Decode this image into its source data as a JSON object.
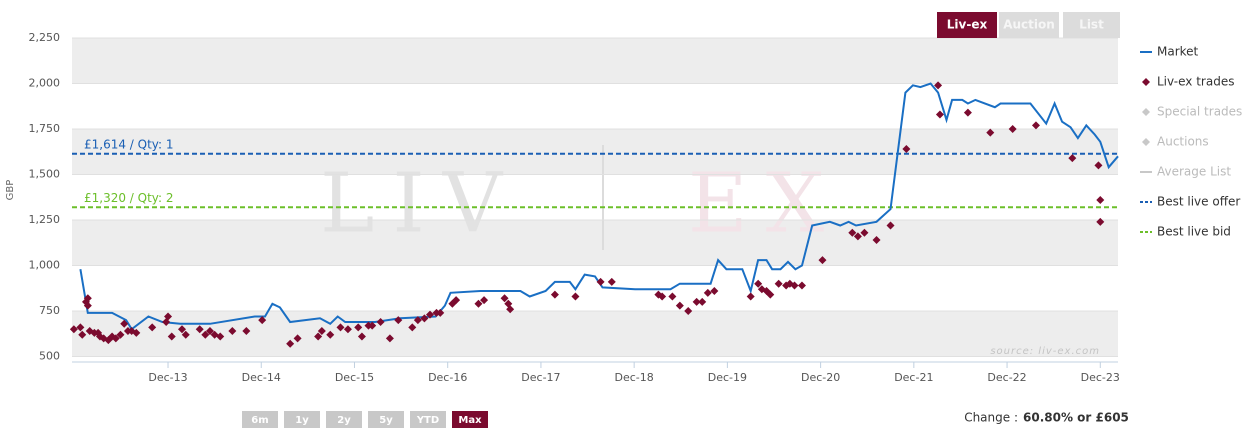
{
  "chart_data": {
    "type": "line",
    "tabs": [
      {
        "label": "Liv-ex",
        "active": true
      },
      {
        "label": "Auction",
        "active": false
      },
      {
        "label": "List",
        "active": false
      }
    ],
    "y_axis_label": "GBP",
    "ylim": [
      470,
      2250
    ],
    "yticks": [
      500,
      750,
      {
        "value": 1000,
        "label": "1,000"
      },
      {
        "value": 1250,
        "label": "1,250"
      },
      {
        "value": 1500,
        "label": "1,500"
      },
      {
        "value": 1750,
        "label": "1,750"
      },
      {
        "value": 2000,
        "label": "2,000"
      },
      {
        "value": 2250,
        "label": "2,250"
      }
    ],
    "xlim": [
      2012.89,
      2024.11
    ],
    "xticks": [
      {
        "value": 2013.92,
        "label": "Dec-13"
      },
      {
        "value": 2014.92,
        "label": "Dec-14"
      },
      {
        "value": 2015.92,
        "label": "Dec-15"
      },
      {
        "value": 2016.92,
        "label": "Dec-16"
      },
      {
        "value": 2017.92,
        "label": "Dec-17"
      },
      {
        "value": 2018.92,
        "label": "Dec-18"
      },
      {
        "value": 2019.92,
        "label": "Dec-19"
      },
      {
        "value": 2020.92,
        "label": "Dec-20"
      },
      {
        "value": 2021.92,
        "label": "Dec-21"
      },
      {
        "value": 2022.92,
        "label": "Dec-22"
      },
      {
        "value": 2023.92,
        "label": "Dec-23"
      }
    ],
    "watermark_left": "LIV",
    "watermark_right": "EX",
    "source": "source: liv-ex.com",
    "series": [
      {
        "name": "Market",
        "type": "line",
        "color": "#1a6fc4",
        "visible": true,
        "x": [
          2012.98,
          2013.06,
          2013.32,
          2013.47,
          2013.53,
          2013.71,
          2013.86,
          2014.05,
          2014.37,
          2014.85,
          2014.96,
          2015.04,
          2015.12,
          2015.23,
          2015.55,
          2015.66,
          2015.74,
          2015.82,
          2016.14,
          2016.41,
          2016.79,
          2016.89,
          2016.95,
          2017.27,
          2017.7,
          2017.8,
          2017.97,
          2018.07,
          2018.23,
          2018.29,
          2018.39,
          2018.5,
          2018.58,
          2018.93,
          2019.31,
          2019.41,
          2019.74,
          2019.82,
          2019.91,
          2020.08,
          2020.17,
          2020.25,
          2020.34,
          2020.4,
          2020.49,
          2020.57,
          2020.65,
          2020.72,
          2020.83,
          2021.02,
          2021.13,
          2021.22,
          2021.3,
          2021.52,
          2021.67,
          2021.83,
          2021.91,
          2021.99,
          2022.1,
          2022.18,
          2022.27,
          2022.33,
          2022.44,
          2022.5,
          2022.58,
          2022.79,
          2022.85,
          2023.17,
          2023.34,
          2023.43,
          2023.51,
          2023.6,
          2023.68,
          2023.77,
          2023.86,
          2023.92,
          2024.01,
          2024.11
        ],
        "values": [
          980,
          740,
          740,
          700,
          650,
          720,
          690,
          680,
          680,
          720,
          720,
          790,
          770,
          690,
          710,
          680,
          720,
          690,
          690,
          710,
          720,
          780,
          850,
          860,
          860,
          830,
          860,
          910,
          910,
          870,
          950,
          940,
          880,
          870,
          870,
          900,
          900,
          1030,
          980,
          980,
          860,
          1030,
          1030,
          980,
          980,
          1020,
          980,
          1000,
          1220,
          1240,
          1220,
          1240,
          1220,
          1240,
          1310,
          1950,
          1990,
          1980,
          2000,
          1950,
          1800,
          1910,
          1910,
          1890,
          1910,
          1870,
          1890,
          1890,
          1780,
          1890,
          1790,
          1760,
          1700,
          1770,
          1720,
          1680,
          1540,
          1600
        ]
      },
      {
        "name": "Liv-ex trades",
        "type": "scatter",
        "color": "#7b0b2f",
        "visible": true,
        "x": [
          2012.91,
          2012.98,
          2013.0,
          2013.04,
          2013.06,
          2013.06,
          2013.08,
          2013.13,
          2013.17,
          2013.19,
          2013.23,
          2013.28,
          2013.32,
          2013.36,
          2013.41,
          2013.45,
          2013.49,
          2013.53,
          2013.58,
          2013.75,
          2013.9,
          2013.92,
          2013.96,
          2014.07,
          2014.11,
          2014.26,
          2014.32,
          2014.37,
          2014.42,
          2014.48,
          2014.61,
          2014.76,
          2014.93,
          2015.23,
          2015.31,
          2015.53,
          2015.57,
          2015.66,
          2015.77,
          2015.85,
          2015.96,
          2016.0,
          2016.07,
          2016.11,
          2016.2,
          2016.3,
          2016.39,
          2016.54,
          2016.6,
          2016.67,
          2016.73,
          2016.8,
          2016.84,
          2016.97,
          2017.01,
          2017.25,
          2017.31,
          2017.53,
          2017.57,
          2017.59,
          2018.07,
          2018.29,
          2018.56,
          2018.68,
          2019.18,
          2019.22,
          2019.33,
          2019.41,
          2019.5,
          2019.59,
          2019.65,
          2019.71,
          2019.78,
          2020.17,
          2020.25,
          2020.29,
          2020.34,
          2020.38,
          2020.47,
          2020.55,
          2020.59,
          2020.64,
          2020.72,
          2020.94,
          2021.26,
          2021.32,
          2021.39,
          2021.52,
          2021.67,
          2021.84,
          2022.18,
          2022.2,
          2022.5,
          2022.74,
          2022.98,
          2023.23,
          2023.62,
          2023.9,
          2023.92,
          2023.92
        ],
        "values": [
          650,
          660,
          620,
          800,
          820,
          780,
          640,
          630,
          630,
          610,
          600,
          590,
          610,
          600,
          620,
          680,
          640,
          640,
          630,
          660,
          690,
          720,
          610,
          650,
          620,
          650,
          620,
          640,
          620,
          610,
          640,
          640,
          700,
          570,
          600,
          610,
          640,
          620,
          660,
          650,
          660,
          610,
          670,
          670,
          690,
          600,
          700,
          660,
          700,
          710,
          730,
          740,
          740,
          790,
          810,
          790,
          810,
          820,
          790,
          760,
          840,
          830,
          910,
          910,
          840,
          830,
          830,
          780,
          750,
          800,
          800,
          850,
          860,
          830,
          900,
          870,
          860,
          840,
          900,
          890,
          900,
          890,
          890,
          1030,
          1180,
          1160,
          1180,
          1140,
          1220,
          1640,
          1990,
          1830,
          1840,
          1730,
          1750,
          1770,
          1590,
          1550,
          1360,
          1240
        ]
      },
      {
        "name": "Special trades",
        "type": "scatter",
        "color": "#c8c8c8",
        "visible": false
      },
      {
        "name": "Auctions",
        "type": "scatter",
        "color": "#c8c8c8",
        "visible": false
      },
      {
        "name": "Average List",
        "type": "line",
        "color": "#c8c8c8",
        "visible": false
      }
    ],
    "reference_lines": [
      {
        "name": "Best live offer",
        "value": 1614,
        "label": "£1,614 / Qty: 1",
        "color": "#1a5fb4"
      },
      {
        "name": "Best live bid",
        "value": 1320,
        "label": "£1,320 / Qty: 2",
        "color": "#6cbf2a"
      }
    ],
    "ranges": [
      {
        "label": "6m",
        "active": false
      },
      {
        "label": "1y",
        "active": false
      },
      {
        "label": "2y",
        "active": false
      },
      {
        "label": "5y",
        "active": false
      },
      {
        "label": "YTD",
        "active": false
      },
      {
        "label": "Max",
        "active": true
      }
    ],
    "change_label": "Change :",
    "change_value": "60.80% or £605"
  }
}
